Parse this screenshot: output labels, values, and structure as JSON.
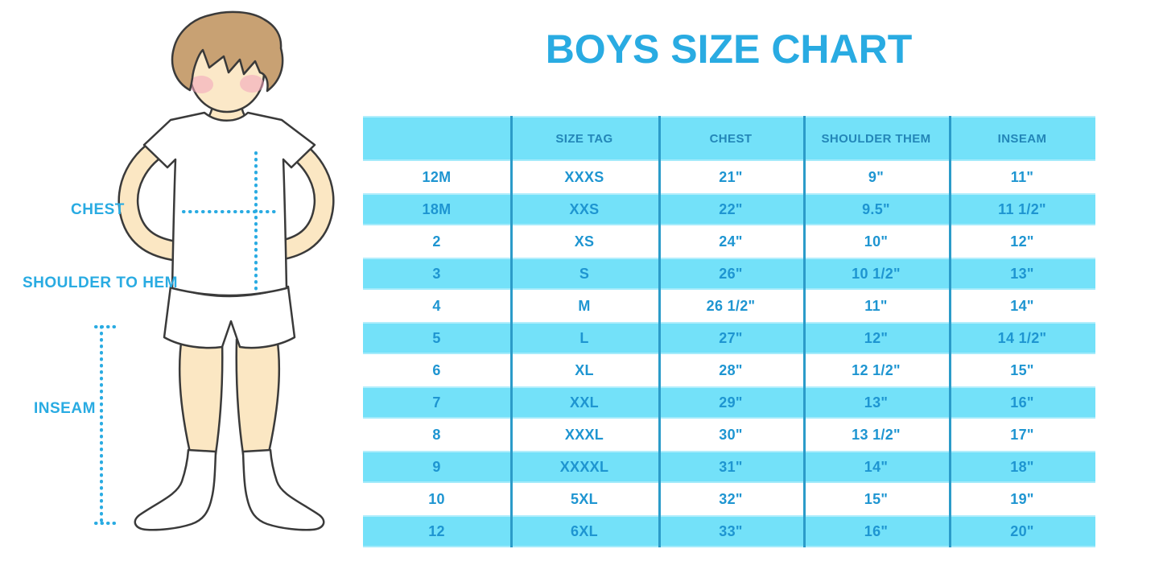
{
  "title": "BOYS SIZE CHART",
  "colors": {
    "accent": "#29ABE2",
    "table_band": "#73E1F9",
    "table_divider": "#2B9BC9",
    "cell_text": "#1E95D1",
    "header_text": "#2386B8",
    "skin": "#FBE7C3",
    "hair": "#C8A173",
    "blush": "#F2A3BC",
    "outline": "#3A3A3A"
  },
  "diagram": {
    "labels": {
      "chest": "CHEST",
      "shoulder_to_hem": "SHOULDER TO HEM",
      "inseam": "INSEAM"
    }
  },
  "chart_data": {
    "type": "table",
    "title": "BOYS SIZE CHART",
    "columns": [
      "",
      "SIZE TAG",
      "CHEST",
      "SHOULDER THEM",
      "INSEAM"
    ],
    "rows": [
      [
        "12M",
        "XXXS",
        "21\"",
        "9\"",
        "11\""
      ],
      [
        "18M",
        "XXS",
        "22\"",
        "9.5\"",
        "11 1/2\""
      ],
      [
        "2",
        "XS",
        "24\"",
        "10\"",
        "12\""
      ],
      [
        "3",
        "S",
        "26\"",
        "10 1/2\"",
        "13\""
      ],
      [
        "4",
        "M",
        "26 1/2\"",
        "11\"",
        "14\""
      ],
      [
        "5",
        "L",
        "27\"",
        "12\"",
        "14 1/2\""
      ],
      [
        "6",
        "XL",
        "28\"",
        "12 1/2\"",
        "15\""
      ],
      [
        "7",
        "XXL",
        "29\"",
        "13\"",
        "16\""
      ],
      [
        "8",
        "XXXL",
        "30\"",
        "13 1/2\"",
        "17\""
      ],
      [
        "9",
        "XXXXL",
        "31\"",
        "14\"",
        "18\""
      ],
      [
        "10",
        "5XL",
        "32\"",
        "15\"",
        "19\""
      ],
      [
        "12",
        "6XL",
        "33\"",
        "16\"",
        "20\""
      ]
    ],
    "layout": {
      "banding": "alternating cyan/white starting white",
      "header_band": true
    }
  }
}
